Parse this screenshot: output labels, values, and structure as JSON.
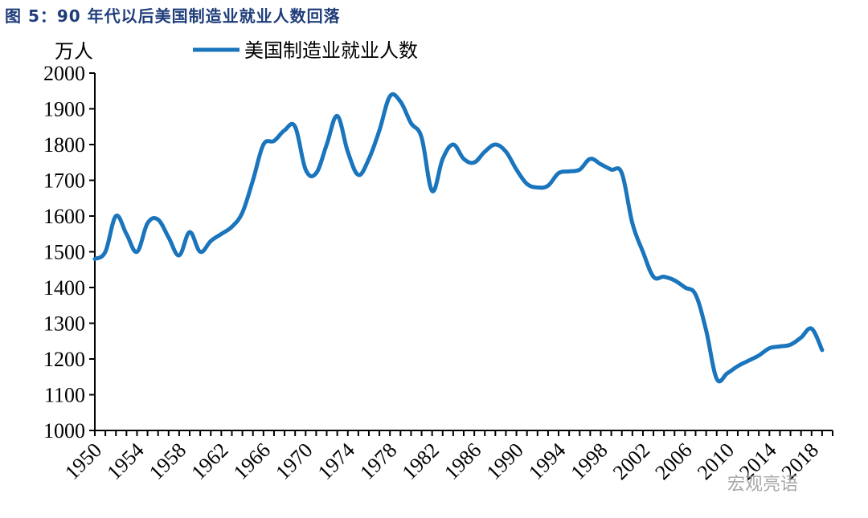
{
  "figure_title": "图 5：90 年代以后美国制造业就业人数回落",
  "watermark": "宏观亮语",
  "colors": {
    "series": "#1a75bc",
    "title": "#1f3d7a"
  },
  "chart_data": {
    "type": "line",
    "title": "",
    "ylabel": "万人",
    "xlabel": "",
    "ylim": [
      1000,
      2000
    ],
    "y_ticks": [
      1000,
      1100,
      1200,
      1300,
      1400,
      1500,
      1600,
      1700,
      1800,
      1900,
      2000
    ],
    "xlim": [
      1950,
      2019
    ],
    "x_tick_labels": [
      "1950",
      "1954",
      "1958",
      "1962",
      "1966",
      "1970",
      "1974",
      "1978",
      "1982",
      "1986",
      "1990",
      "1994",
      "1998",
      "2002",
      "2006",
      "2010",
      "2014",
      "2018"
    ],
    "legend": "top",
    "grid": false,
    "series": [
      {
        "name": "美国制造业就业人数",
        "x": [
          1950,
          1951,
          1952,
          1953,
          1954,
          1955,
          1956,
          1957,
          1958,
          1959,
          1960,
          1961,
          1962,
          1963,
          1964,
          1965,
          1966,
          1967,
          1968,
          1969,
          1970,
          1971,
          1972,
          1973,
          1974,
          1975,
          1976,
          1977,
          1978,
          1979,
          1980,
          1981,
          1982,
          1983,
          1984,
          1985,
          1986,
          1987,
          1988,
          1989,
          1990,
          1991,
          1992,
          1993,
          1994,
          1995,
          1996,
          1997,
          1998,
          1999,
          2000,
          2001,
          2002,
          2003,
          2004,
          2005,
          2006,
          2007,
          2008,
          2009,
          2010,
          2011,
          2012,
          2013,
          2014,
          2015,
          2016,
          2017,
          2018,
          2019
        ],
        "values": [
          1480,
          1500,
          1600,
          1550,
          1500,
          1580,
          1590,
          1540,
          1490,
          1555,
          1500,
          1530,
          1550,
          1570,
          1610,
          1700,
          1800,
          1810,
          1840,
          1850,
          1730,
          1720,
          1800,
          1880,
          1780,
          1715,
          1760,
          1840,
          1935,
          1920,
          1860,
          1820,
          1670,
          1760,
          1800,
          1760,
          1750,
          1780,
          1800,
          1780,
          1730,
          1690,
          1680,
          1685,
          1720,
          1725,
          1730,
          1760,
          1745,
          1730,
          1720,
          1580,
          1500,
          1430,
          1430,
          1420,
          1400,
          1380,
          1280,
          1145,
          1160,
          1180,
          1195,
          1210,
          1230,
          1235,
          1240,
          1260,
          1285,
          1225
        ]
      }
    ]
  }
}
